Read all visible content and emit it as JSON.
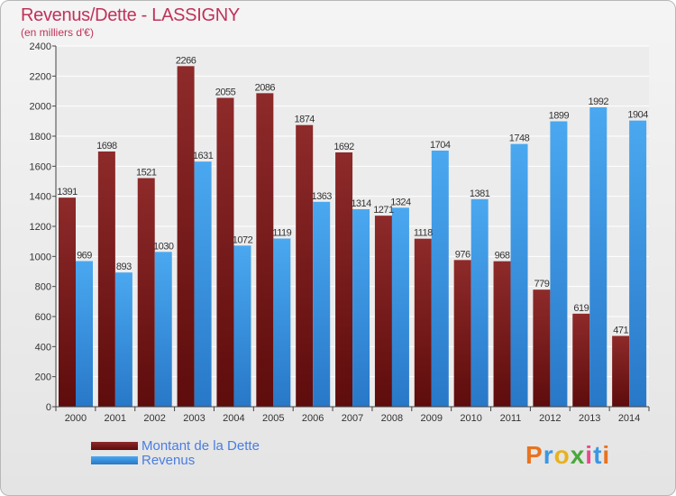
{
  "title": "Revenus/Dette - LASSIGNY",
  "subtitle": "(en milliers d'€)",
  "legend": {
    "dette": "Montant de la Dette",
    "revenus": "Revenus"
  },
  "logo": "Proxiti",
  "colors": {
    "dette": "#7a1c1c",
    "revenus": "#3a97e4",
    "title": "#c0325a",
    "legend_text": "#4a7de0"
  },
  "chart_data": {
    "type": "bar",
    "title": "Revenus/Dette - LASSIGNY",
    "subtitle": "(en milliers d'€)",
    "categories": [
      "2000",
      "2001",
      "2002",
      "2003",
      "2004",
      "2005",
      "2006",
      "2007",
      "2008",
      "2009",
      "2010",
      "2011",
      "2012",
      "2013",
      "2014"
    ],
    "series": [
      {
        "name": "Montant de la Dette",
        "values": [
          1391,
          1698,
          1521,
          2266,
          2055,
          2086,
          1874,
          1692,
          1271,
          1118,
          976,
          968,
          779,
          619,
          471
        ]
      },
      {
        "name": "Revenus",
        "values": [
          969,
          893,
          1030,
          1631,
          1072,
          1119,
          1363,
          1314,
          1324,
          1704,
          1381,
          1748,
          1899,
          1992,
          1904
        ]
      }
    ],
    "ylim": [
      0,
      2400
    ],
    "yticks": [
      0,
      200,
      400,
      600,
      800,
      1000,
      1200,
      1400,
      1600,
      1800,
      2000,
      2200,
      2400
    ],
    "grid": true,
    "legend_position": "bottom-left"
  }
}
